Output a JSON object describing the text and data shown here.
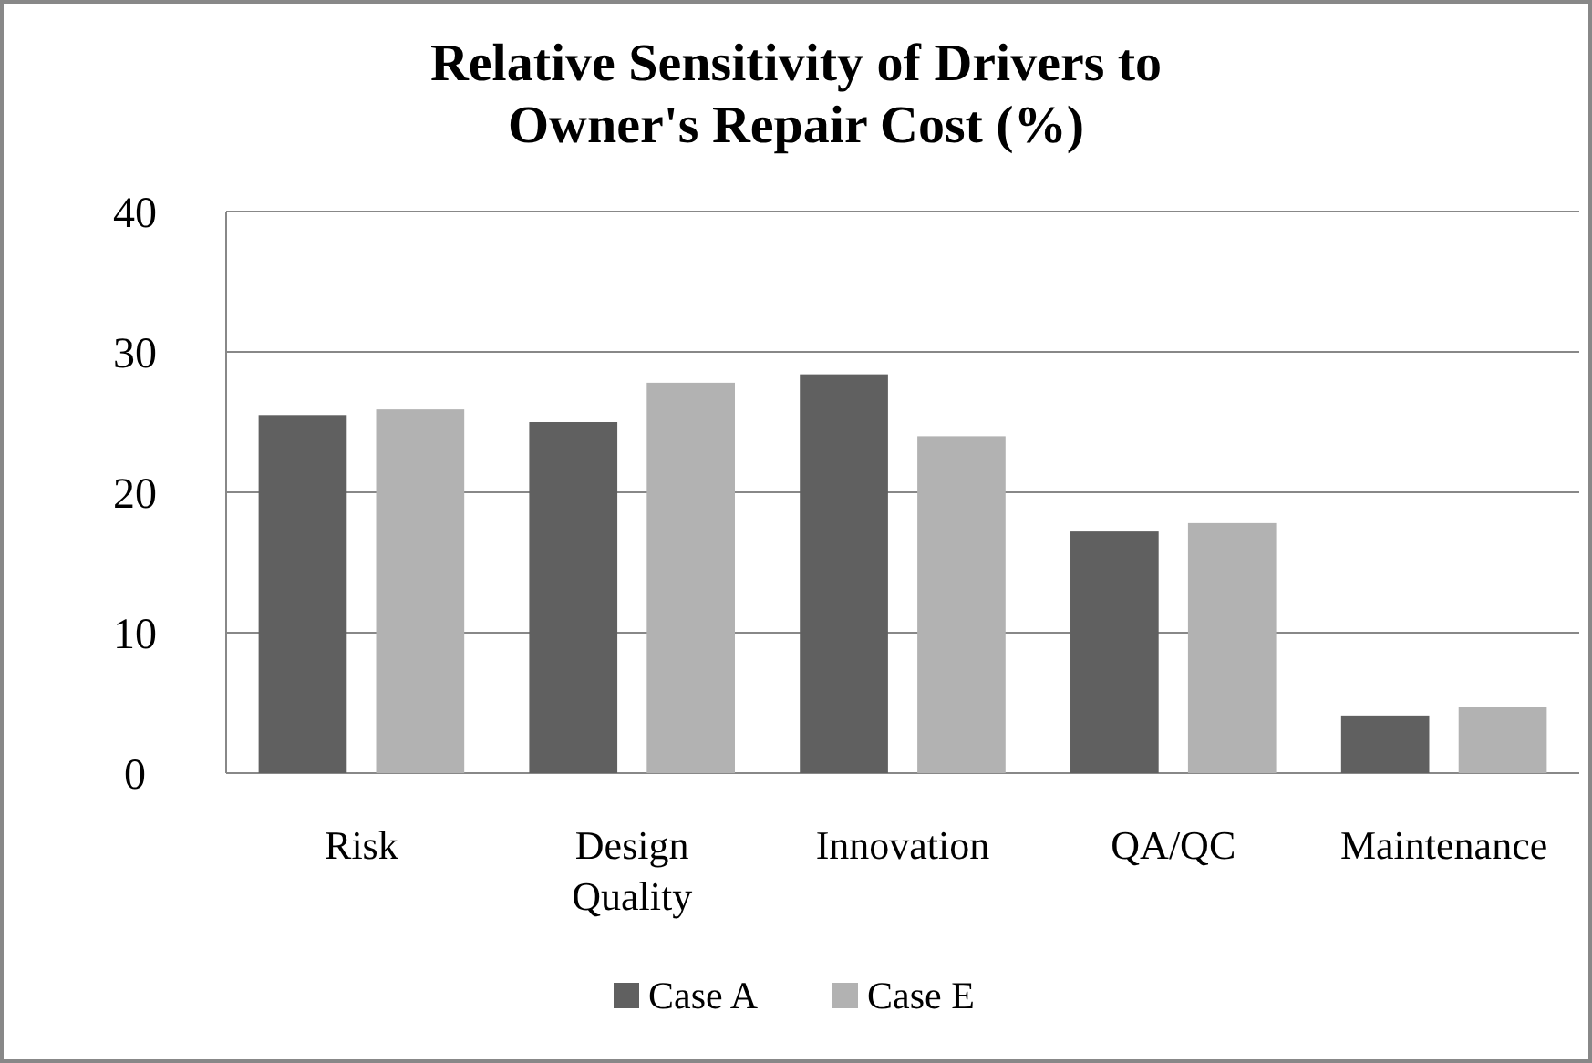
{
  "chart_data": {
    "type": "bar",
    "title": "Relative Sensitivity of Drivers to Owner's Repair Cost (%)",
    "categories": [
      "Risk",
      "Design Quality",
      "Innovation",
      "QA/QC",
      "Maintenance"
    ],
    "series": [
      {
        "name": "Case A",
        "color": "#606060",
        "values": [
          25.5,
          25.0,
          28.4,
          17.2,
          4.1
        ]
      },
      {
        "name": "Case E",
        "color": "#b2b2b2",
        "values": [
          25.9,
          27.8,
          24.0,
          17.8,
          4.7
        ]
      }
    ],
    "ylim": [
      0,
      40
    ],
    "yticks": [
      0,
      10,
      20,
      30,
      40
    ],
    "grid": "y",
    "legend": "bottom"
  }
}
